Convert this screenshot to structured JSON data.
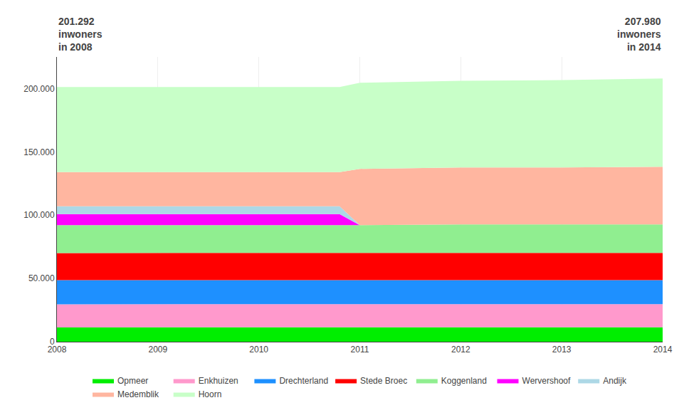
{
  "chart_data": {
    "type": "area",
    "stacked": true,
    "x": [
      2008,
      2009,
      2010,
      2010.8,
      2011,
      2012,
      2013,
      2014
    ],
    "series": [
      {
        "name": "Opmeer",
        "color": "#00ee00",
        "values": [
          11300,
          11300,
          11300,
          11300,
          11300,
          11400,
          11400,
          11400
        ]
      },
      {
        "name": "Enkhuizen",
        "color": "#ff99cc",
        "values": [
          18300,
          18300,
          18300,
          18300,
          18300,
          18300,
          18300,
          18300
        ]
      },
      {
        "name": "Drechterland",
        "color": "#1E90FF",
        "values": [
          19000,
          19000,
          19000,
          19000,
          19000,
          19000,
          19000,
          19000
        ]
      },
      {
        "name": "Stede Broec",
        "color": "#ff0000",
        "values": [
          21500,
          21500,
          21500,
          21500,
          21500,
          21500,
          21500,
          21500
        ]
      },
      {
        "name": "Koggenland",
        "color": "#90EE90",
        "values": [
          22000,
          22000,
          22000,
          22000,
          22000,
          22500,
          22500,
          22500
        ]
      },
      {
        "name": "Wervershoof",
        "color": "#ff00ff",
        "values": [
          8700,
          8700,
          8700,
          8700,
          0,
          0,
          0,
          0
        ]
      },
      {
        "name": "Andijk",
        "color": "#ADD8E6",
        "values": [
          6200,
          6200,
          6200,
          6200,
          0,
          0,
          0,
          0
        ]
      },
      {
        "name": "Medemblik",
        "color": "#FFB6A0",
        "values": [
          27000,
          27000,
          27000,
          27000,
          44500,
          45000,
          45000,
          45500
        ]
      },
      {
        "name": "Hoorn",
        "color": "#C8FFC8",
        "values": [
          67300,
          67300,
          67300,
          67300,
          68000,
          68500,
          69000,
          69800
        ]
      }
    ],
    "annotations": [
      "201.292\ninwoners\nin 2008",
      "207.980\ninwoners\nin 2014"
    ],
    "xlim": [
      2008,
      2014
    ],
    "xticks": [
      2008,
      2009,
      2010,
      2011,
      2012,
      2013,
      2014
    ],
    "ylim": [
      0,
      225000
    ],
    "yticks": [
      0,
      {
        "value": 50000,
        "label": "50.000"
      },
      {
        "value": 100000,
        "label": "100.000"
      },
      {
        "value": 150000,
        "label": "150.000"
      },
      {
        "value": 200000,
        "label": "200.000"
      }
    ],
    "grid": true,
    "legend": "bottom"
  }
}
